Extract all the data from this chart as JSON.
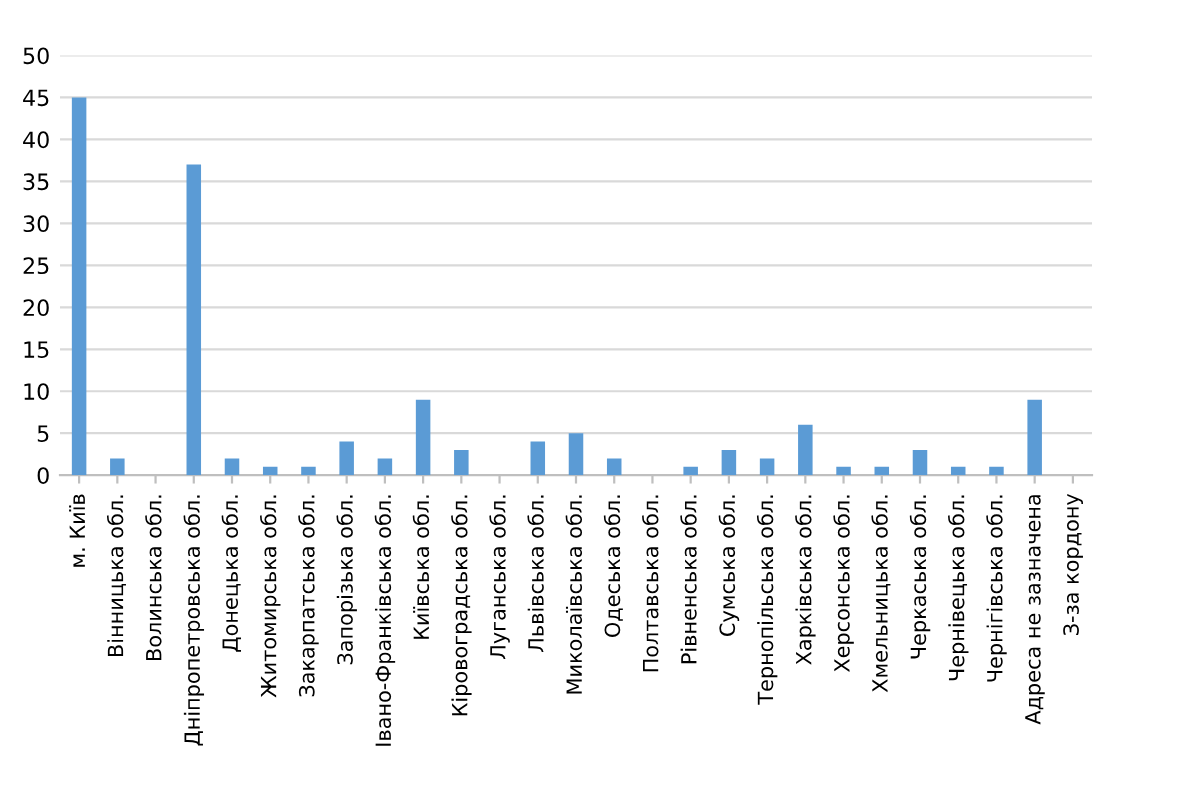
{
  "chart_data": {
    "type": "bar",
    "categories": [
      "м. Київ",
      "Вінницька обл.",
      "Волинська обл.",
      "Дніпропетровська обл.",
      "Донецька обл.",
      "Житомирська обл.",
      "Закарпатська обл.",
      "Запорізька обл.",
      "Івано-Франківська обл.",
      "Київська обл.",
      "Кіровоградська обл.",
      "Луганська обл.",
      "Львівська обл.",
      "Миколаївська обл.",
      "Одеська обл.",
      "Полтавська обл.",
      "Рівненська обл.",
      "Сумська обл.",
      "Тернопільська обл.",
      "Харківська обл.",
      "Херсонська обл.",
      "Хмельницька обл.",
      "Черкаська обл.",
      "Чернівецька обл.",
      "Чернігівська обл.",
      "Адреса не зазначена",
      "З-за кордону"
    ],
    "values": [
      45,
      2,
      0,
      37,
      2,
      1,
      1,
      4,
      2,
      9,
      3,
      0,
      4,
      5,
      2,
      0,
      1,
      3,
      2,
      6,
      1,
      1,
      3,
      1,
      1,
      9,
      0
    ],
    "color": "#5b9bd5",
    "ylim": [
      0,
      50
    ],
    "yticks": [
      0,
      5,
      10,
      15,
      20,
      25,
      30,
      35,
      40,
      45,
      50
    ],
    "grid": "y"
  }
}
